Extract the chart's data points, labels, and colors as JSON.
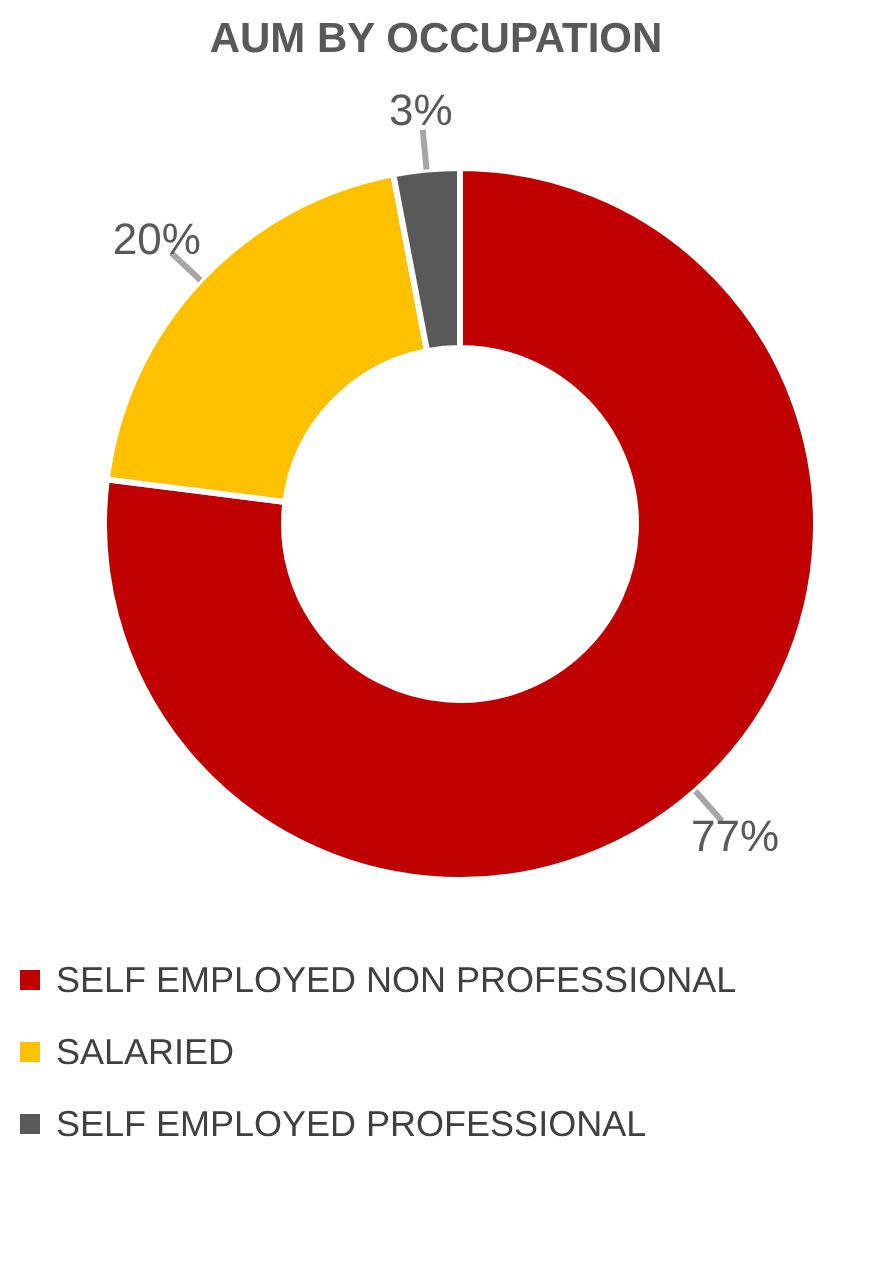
{
  "chart_data": {
    "type": "donut",
    "title": "AUM BY OCCUPATION",
    "categories": [
      "SELF EMPLOYED NON PROFESSIONAL",
      "SALARIED",
      "SELF EMPLOYED PROFESSIONAL"
    ],
    "values": [
      77,
      20,
      3
    ],
    "value_labels": [
      "77%",
      "20%",
      "3%"
    ],
    "colors": [
      "#c00000",
      "#ffc000",
      "#595959"
    ],
    "legend": "bottom"
  }
}
